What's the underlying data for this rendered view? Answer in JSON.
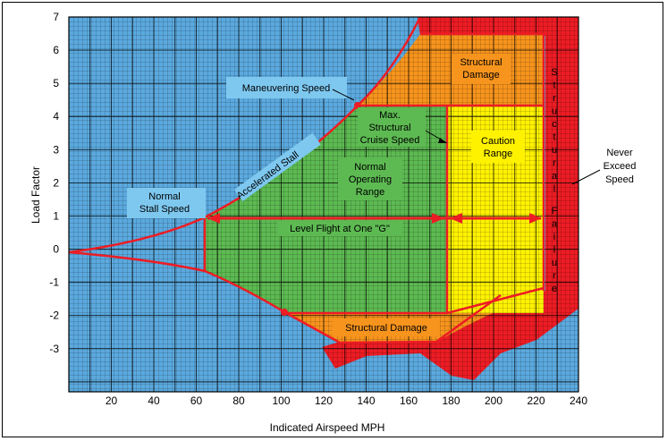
{
  "chart_data": {
    "type": "diagram",
    "xlabel": "Indicated Airspeed MPH",
    "ylabel": "Load Factor",
    "xlim": [
      0,
      240
    ],
    "ylim": [
      -4.3,
      7
    ],
    "x_ticks": [
      "20",
      "40",
      "60",
      "80",
      "100",
      "120",
      "140",
      "160",
      "180",
      "200",
      "220",
      "240"
    ],
    "y_ticks": [
      "7",
      "6",
      "5",
      "4",
      "3",
      "2",
      "1",
      "0",
      "-1",
      "-2",
      "-3"
    ],
    "labels": {
      "maneuvering_speed": "Maneuvering Speed",
      "accelerated_stall": "Accelerated Stall",
      "normal_stall_speed_1": "Normal",
      "normal_stall_speed_2": "Stall Speed",
      "max_structural_1": "Max.",
      "max_structural_2": "Structural",
      "max_structural_3": "Cruise Speed",
      "normal_operating_1": "Normal",
      "normal_operating_2": "Operating",
      "normal_operating_3": "Range",
      "caution_1": "Caution",
      "caution_2": "Range",
      "structural_damage_top_1": "Structural",
      "structural_damage_top_2": "Damage",
      "structural_damage_bottom": "Structural Damage",
      "structural_failure": "Structural Failure",
      "never_exceed_1": "Never",
      "never_exceed_2": "Exceed",
      "never_exceed_3": "Speed",
      "level_flight": "Level Flight at One \"G\""
    },
    "key_speeds": {
      "normal_stall_speed": 65,
      "maneuvering_speed": 135,
      "max_structural_cruise_speed": 178,
      "never_exceed_speed": 225
    },
    "limit_load_factors": {
      "positive": 4.4,
      "negative": -1.8
    },
    "colors": {
      "background": "#5ba9de",
      "normal": "#5dba52",
      "caution": "#fff200",
      "damage": "#f7941d",
      "failure": "#ed1c24",
      "outline": "#ed1c24",
      "label_box": "#7ec8f0"
    }
  }
}
